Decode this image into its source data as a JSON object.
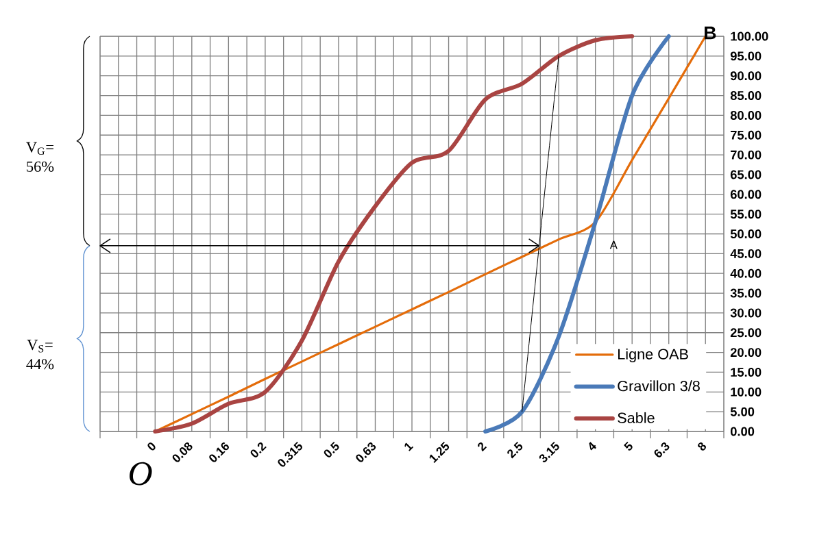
{
  "chart_data": {
    "type": "line",
    "categories": [
      null,
      "0",
      "0.08",
      "0.16",
      "0.2",
      "0.315",
      "0.5",
      "0.63",
      "1",
      "1.25",
      "2",
      "2.5",
      "3.15",
      "4",
      "5",
      "6.3",
      "8"
    ],
    "series": [
      {
        "name": "Ligne OAB",
        "color": "#e46c0a",
        "values": [
          null,
          0,
          4.4,
          8.8,
          13.3,
          17.7,
          22.1,
          26.5,
          30.9,
          35.3,
          39.8,
          44.2,
          48.6,
          53,
          68.7,
          84.3,
          100
        ]
      },
      {
        "name": "Gravillon 3/8",
        "color": "#4a7ab8",
        "values": [
          null,
          null,
          null,
          null,
          null,
          null,
          null,
          null,
          null,
          null,
          0,
          5,
          24,
          53,
          85,
          100,
          null
        ]
      },
      {
        "name": "Sable",
        "color": "#a94442",
        "values": [
          null,
          0,
          2,
          7,
          10,
          23,
          43,
          57,
          68,
          71,
          84,
          88,
          95,
          99,
          100,
          null,
          null
        ]
      },
      {
        "color": "#000000",
        "values": [
          null,
          null,
          null,
          null,
          null,
          null,
          null,
          null,
          null,
          null,
          null,
          5,
          95,
          null,
          null,
          null,
          null
        ]
      }
    ],
    "ylim": [
      0,
      100
    ],
    "yticks": [
      {
        "value": 0,
        "label": "0.00"
      },
      {
        "value": 5,
        "label": "5.00"
      },
      {
        "value": 10,
        "label": "10.00"
      },
      {
        "value": 15,
        "label": "15.00"
      },
      {
        "value": 20,
        "label": "20.00"
      },
      {
        "value": 25,
        "label": "25.00"
      },
      {
        "value": 30,
        "label": "30.00"
      },
      {
        "value": 35,
        "label": "35.00"
      },
      {
        "value": 40,
        "label": "40.00"
      },
      {
        "value": 45,
        "label": "45.00"
      },
      {
        "value": 50,
        "label": "50.00"
      },
      {
        "value": 55,
        "label": "55.00"
      },
      {
        "value": 60,
        "label": "60.00"
      },
      {
        "value": 65,
        "label": "65.00"
      },
      {
        "value": 70,
        "label": "70.00"
      },
      {
        "value": 75,
        "label": "75.00"
      },
      {
        "value": 80,
        "label": "80.00"
      },
      {
        "value": 85,
        "label": "85.00"
      },
      {
        "value": 90,
        "label": "90.00"
      },
      {
        "value": 95,
        "label": "95.00"
      },
      {
        "value": 100,
        "label": "100.00"
      }
    ],
    "ref_lines": [
      {
        "axis": "y",
        "value": 47,
        "color": "#000000"
      }
    ],
    "annotations": [
      {
        "text": "O",
        "x": "0",
        "y": 0
      },
      {
        "text": "A",
        "x": "4",
        "y": 53
      },
      {
        "text": "B",
        "x": "8",
        "y": 100
      },
      "V$_{G}$= 56%",
      "V$_{S}$= 44%"
    ],
    "grid": true,
    "legend": "bottom right",
    "marker": "none",
    "line_style": "solid"
  }
}
